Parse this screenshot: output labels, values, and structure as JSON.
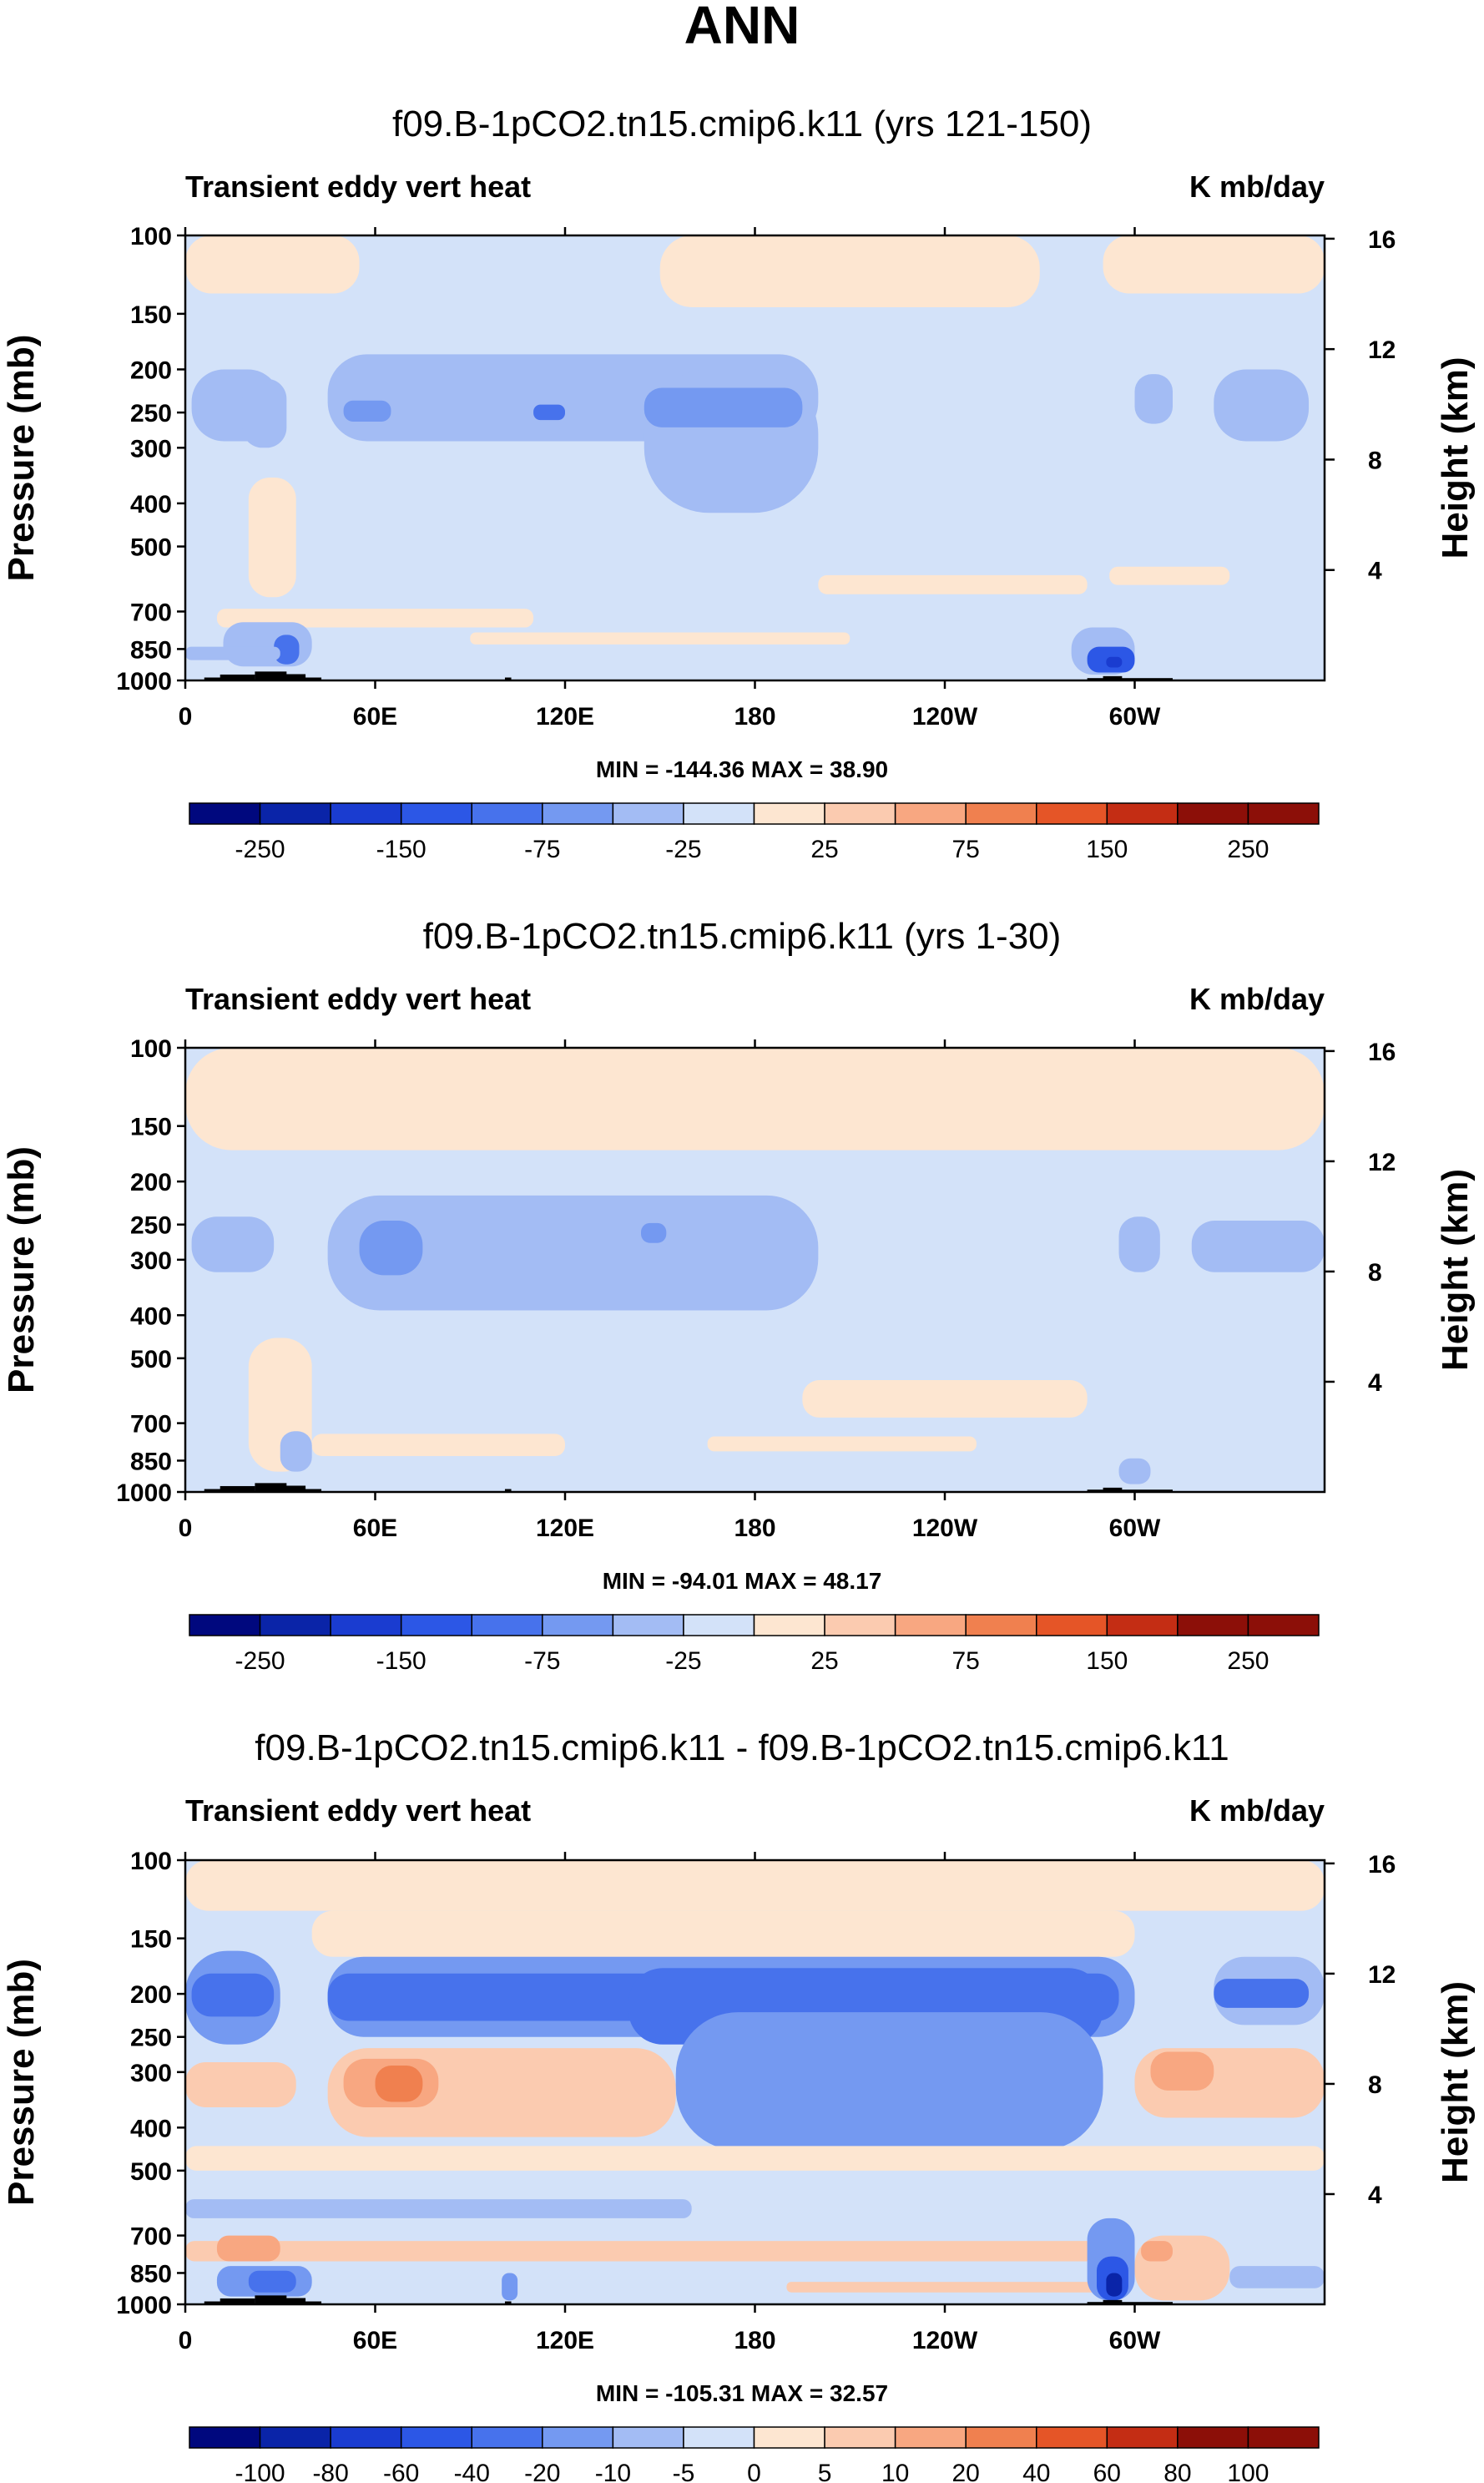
{
  "figure_title": "ANN",
  "panels": [
    {
      "title": "f09.B-1pCO2.tn15.cmip6.k11 (yrs 121-150)",
      "left_label": "Transient eddy vert heat",
      "right_label": "K mb/day",
      "stats": "MIN = -144.36  MAX =  38.90",
      "colorbar": [
        "-250",
        "-150",
        "-75",
        "-25",
        "25",
        "75",
        "150",
        "250"
      ]
    },
    {
      "title": "f09.B-1pCO2.tn15.cmip6.k11 (yrs 1-30)",
      "left_label": "Transient eddy vert heat",
      "right_label": "K mb/day",
      "stats": "MIN = -94.01  MAX =  48.17",
      "colorbar": [
        "-250",
        "-150",
        "-75",
        "-25",
        "25",
        "75",
        "150",
        "250"
      ]
    },
    {
      "title": "f09.B-1pCO2.tn15.cmip6.k11 - f09.B-1pCO2.tn15.cmip6.k11",
      "left_label": "Transient eddy vert heat",
      "right_label": "K mb/day",
      "stats": "MIN = -105.31  MAX =  32.57",
      "colorbar": [
        "-100",
        "-80",
        "-60",
        "-40",
        "-20",
        "-10",
        "-5",
        "0",
        "5",
        "10",
        "20",
        "40",
        "60",
        "80",
        "100"
      ]
    }
  ],
  "chart_data": [
    {
      "type": "heatmap",
      "title": "f09.B-1pCO2.tn15.cmip6.k11 (yrs 121-150)",
      "xlabel": "",
      "ylabel": "Pressure (mb)",
      "y2label": "Height (km)",
      "x_ticks": [
        "0",
        "60E",
        "120E",
        "180",
        "120W",
        "60W"
      ],
      "x_tick_lons": [
        0,
        60,
        120,
        180,
        240,
        300
      ],
      "xlim": [
        0,
        360
      ],
      "y_ticks": [
        "100",
        "150",
        "200",
        "250",
        "300",
        "400",
        "500",
        "700",
        "850",
        "1000"
      ],
      "y_tick_values": [
        100,
        150,
        200,
        250,
        300,
        400,
        500,
        700,
        850,
        1000
      ],
      "ylim": [
        1000,
        100
      ],
      "y2_ticks": [
        "4",
        "8",
        "12",
        "16"
      ],
      "units": "K mb/day",
      "min": -144.36,
      "max": 38.9,
      "levels": [
        -250,
        -200,
        -150,
        -100,
        -75,
        -50,
        -25,
        0,
        25,
        50,
        75,
        100,
        150,
        200,
        250
      ],
      "background_value": -10,
      "features": [
        {
          "lon": [
            150,
            270
          ],
          "p": [
            100,
            145
          ],
          "value": 8
        },
        {
          "lon": [
            0,
            55
          ],
          "p": [
            100,
            135
          ],
          "value": 8
        },
        {
          "lon": [
            290,
            360
          ],
          "p": [
            100,
            135
          ],
          "value": 8
        },
        {
          "lon": [
            45,
            200
          ],
          "p": [
            185,
            290
          ],
          "value": -35
        },
        {
          "lon": [
            145,
            200
          ],
          "p": [
            200,
            420
          ],
          "value": -30
        },
        {
          "lon": [
            145,
            195
          ],
          "p": [
            220,
            270
          ],
          "value": -70
        },
        {
          "lon": [
            50,
            65
          ],
          "p": [
            235,
            262
          ],
          "value": -70
        },
        {
          "lon": [
            325,
            355
          ],
          "p": [
            200,
            290
          ],
          "value": -30
        },
        {
          "lon": [
            2,
            30
          ],
          "p": [
            200,
            290
          ],
          "value": -30
        },
        {
          "lon": [
            18,
            32
          ],
          "p": [
            210,
            300
          ],
          "value": -50
        },
        {
          "lon": [
            110,
            120
          ],
          "p": [
            240,
            260
          ],
          "value": -80
        },
        {
          "lon": [
            300,
            312
          ],
          "p": [
            205,
            265
          ],
          "value": -50
        },
        {
          "lon": [
            200,
            285
          ],
          "p": [
            580,
            640
          ],
          "value": 8
        },
        {
          "lon": [
            292,
            330
          ],
          "p": [
            555,
            610
          ],
          "value": 8
        },
        {
          "lon": [
            10,
            110
          ],
          "p": [
            690,
            760
          ],
          "value": 8
        },
        {
          "lon": [
            90,
            210
          ],
          "p": [
            780,
            830
          ],
          "value": 8
        },
        {
          "lon": [
            20,
            35
          ],
          "p": [
            350,
            650
          ],
          "value": 8
        },
        {
          "lon": [
            12,
            40
          ],
          "p": [
            740,
            930
          ],
          "value": -40
        },
        {
          "lon": [
            28,
            36
          ],
          "p": [
            790,
            920
          ],
          "value": -80
        },
        {
          "lon": [
            280,
            300
          ],
          "p": [
            760,
            970
          ],
          "value": -50
        },
        {
          "lon": [
            285,
            300
          ],
          "p": [
            840,
            960
          ],
          "value": -120
        },
        {
          "lon": [
            291,
            296
          ],
          "p": [
            885,
            935
          ],
          "value": -160
        },
        {
          "lon": [
            0,
            30
          ],
          "p": [
            840,
            900
          ],
          "value": -30
        }
      ]
    },
    {
      "type": "heatmap",
      "title": "f09.B-1pCO2.tn15.cmip6.k11 (yrs 1-30)",
      "xlabel": "",
      "ylabel": "Pressure (mb)",
      "y2label": "Height (km)",
      "x_ticks": [
        "0",
        "60E",
        "120E",
        "180",
        "120W",
        "60W"
      ],
      "x_tick_lons": [
        0,
        60,
        120,
        180,
        240,
        300
      ],
      "xlim": [
        0,
        360
      ],
      "y_ticks": [
        "100",
        "150",
        "200",
        "250",
        "300",
        "400",
        "500",
        "700",
        "850",
        "1000"
      ],
      "y_tick_values": [
        100,
        150,
        200,
        250,
        300,
        400,
        500,
        700,
        850,
        1000
      ],
      "ylim": [
        1000,
        100
      ],
      "y2_ticks": [
        "4",
        "8",
        "12",
        "16"
      ],
      "units": "K mb/day",
      "min": -94.01,
      "max": 48.17,
      "levels": [
        -250,
        -200,
        -150,
        -100,
        -75,
        -50,
        -25,
        0,
        25,
        50,
        75,
        100,
        150,
        200,
        250
      ],
      "background_value": -10,
      "features": [
        {
          "lon": [
            0,
            360
          ],
          "p": [
            100,
            170
          ],
          "value": 8
        },
        {
          "lon": [
            45,
            200
          ],
          "p": [
            215,
            390
          ],
          "value": -35
        },
        {
          "lon": [
            55,
            75
          ],
          "p": [
            245,
            325
          ],
          "value": -60
        },
        {
          "lon": [
            144,
            152
          ],
          "p": [
            248,
            275
          ],
          "value": -65
        },
        {
          "lon": [
            2,
            28
          ],
          "p": [
            240,
            320
          ],
          "value": -30
        },
        {
          "lon": [
            295,
            308
          ],
          "p": [
            240,
            320
          ],
          "value": -30
        },
        {
          "lon": [
            318,
            360
          ],
          "p": [
            245,
            320
          ],
          "value": -30
        },
        {
          "lon": [
            195,
            285
          ],
          "p": [
            560,
            680
          ],
          "value": 8
        },
        {
          "lon": [
            20,
            40
          ],
          "p": [
            450,
            900
          ],
          "value": 8
        },
        {
          "lon": [
            40,
            120
          ],
          "p": [
            740,
            830
          ],
          "value": 8
        },
        {
          "lon": [
            165,
            250
          ],
          "p": [
            750,
            810
          ],
          "value": 8
        },
        {
          "lon": [
            30,
            40
          ],
          "p": [
            730,
            900
          ],
          "value": -40
        },
        {
          "lon": [
            295,
            305
          ],
          "p": [
            840,
            960
          ],
          "value": -40
        }
      ]
    },
    {
      "type": "heatmap",
      "title": "f09.B-1pCO2.tn15.cmip6.k11 - f09.B-1pCO2.tn15.cmip6.k11",
      "xlabel": "",
      "ylabel": "Pressure (mb)",
      "y2label": "Height (km)",
      "x_ticks": [
        "0",
        "60E",
        "120E",
        "180",
        "120W",
        "60W"
      ],
      "x_tick_lons": [
        0,
        60,
        120,
        180,
        240,
        300
      ],
      "xlim": [
        0,
        360
      ],
      "y_ticks": [
        "100",
        "150",
        "200",
        "250",
        "300",
        "400",
        "500",
        "700",
        "850",
        "1000"
      ],
      "y_tick_values": [
        100,
        150,
        200,
        250,
        300,
        400,
        500,
        700,
        850,
        1000
      ],
      "ylim": [
        1000,
        100
      ],
      "y2_ticks": [
        "4",
        "8",
        "12",
        "16"
      ],
      "units": "K mb/day",
      "min": -105.31,
      "max": 32.57,
      "levels": [
        -100,
        -80,
        -60,
        -40,
        -20,
        -10,
        -5,
        0,
        5,
        10,
        20,
        40,
        60,
        80,
        100
      ],
      "background_value": -3,
      "features": [
        {
          "lon": [
            0,
            360
          ],
          "p": [
            100,
            130
          ],
          "value": 3
        },
        {
          "lon": [
            40,
            300
          ],
          "p": [
            130,
            165
          ],
          "value": 3
        },
        {
          "lon": [
            45,
            300
          ],
          "p": [
            165,
            250
          ],
          "value": -12
        },
        {
          "lon": [
            0,
            30
          ],
          "p": [
            160,
            260
          ],
          "value": -12
        },
        {
          "lon": [
            325,
            360
          ],
          "p": [
            165,
            235
          ],
          "value": -8
        },
        {
          "lon": [
            45,
            295
          ],
          "p": [
            180,
            230
          ],
          "value": -25
        },
        {
          "lon": [
            140,
            290
          ],
          "p": [
            175,
            260
          ],
          "value": -28
        },
        {
          "lon": [
            155,
            290
          ],
          "p": [
            220,
            450
          ],
          "value": -15
        },
        {
          "lon": [
            2,
            28
          ],
          "p": [
            180,
            225
          ],
          "value": -25
        },
        {
          "lon": [
            325,
            355
          ],
          "p": [
            185,
            215
          ],
          "value": -25
        },
        {
          "lon": [
            0,
            35
          ],
          "p": [
            285,
            360
          ],
          "value": 7
        },
        {
          "lon": [
            45,
            155
          ],
          "p": [
            265,
            420
          ],
          "value": 8
        },
        {
          "lon": [
            50,
            80
          ],
          "p": [
            280,
            360
          ],
          "value": 15
        },
        {
          "lon": [
            60,
            75
          ],
          "p": [
            290,
            350
          ],
          "value": 22
        },
        {
          "lon": [
            300,
            360
          ],
          "p": [
            265,
            380
          ],
          "value": 8
        },
        {
          "lon": [
            305,
            325
          ],
          "p": [
            270,
            330
          ],
          "value": 15
        },
        {
          "lon": [
            0,
            360
          ],
          "p": [
            440,
            500
          ],
          "value": 4
        },
        {
          "lon": [
            0,
            160
          ],
          "p": [
            580,
            640
          ],
          "value": -10
        },
        {
          "lon": [
            0,
            290
          ],
          "p": [
            720,
            800
          ],
          "value": 6
        },
        {
          "lon": [
            10,
            30
          ],
          "p": [
            700,
            800
          ],
          "value": 10
        },
        {
          "lon": [
            190,
            290
          ],
          "p": [
            890,
            940
          ],
          "value": 7
        },
        {
          "lon": [
            10,
            40
          ],
          "p": [
            820,
            960
          ],
          "value": -15
        },
        {
          "lon": [
            20,
            35
          ],
          "p": [
            840,
            940
          ],
          "value": -30
        },
        {
          "lon": [
            285,
            300
          ],
          "p": [
            640,
            980
          ],
          "value": -20
        },
        {
          "lon": [
            288,
            298
          ],
          "p": [
            780,
            980
          ],
          "value": -60
        },
        {
          "lon": [
            291,
            296
          ],
          "p": [
            850,
            960
          ],
          "value": -85
        },
        {
          "lon": [
            300,
            330
          ],
          "p": [
            700,
            980
          ],
          "value": 6
        },
        {
          "lon": [
            302,
            312
          ],
          "p": [
            720,
            800
          ],
          "value": 10
        },
        {
          "lon": [
            100,
            105
          ],
          "p": [
            850,
            980
          ],
          "value": -15
        },
        {
          "lon": [
            330,
            360
          ],
          "p": [
            820,
            920
          ],
          "value": -6
        }
      ]
    }
  ],
  "palettes": {
    "main": [
      "#00087e",
      "#0a24a8",
      "#1a3cd0",
      "#2c57e6",
      "#4772ec",
      "#7499f1",
      "#a3bcf4",
      "#d3e2f9",
      "#fde6d1",
      "#fbcbb0",
      "#f8a781",
      "#f0804f",
      "#e55527",
      "#c42d14",
      "#8c0f08"
    ],
    "diff": [
      "#00087e",
      "#0a24a8",
      "#1a3cd0",
      "#2c57e6",
      "#4772ec",
      "#7499f1",
      "#a3bcf4",
      "#d3e2f9",
      "#fde6d1",
      "#fbcbb0",
      "#f8a781",
      "#f0804f",
      "#e55527",
      "#c42d14",
      "#8c0f08",
      "#8c0f08"
    ],
    "topo": "#000000"
  }
}
